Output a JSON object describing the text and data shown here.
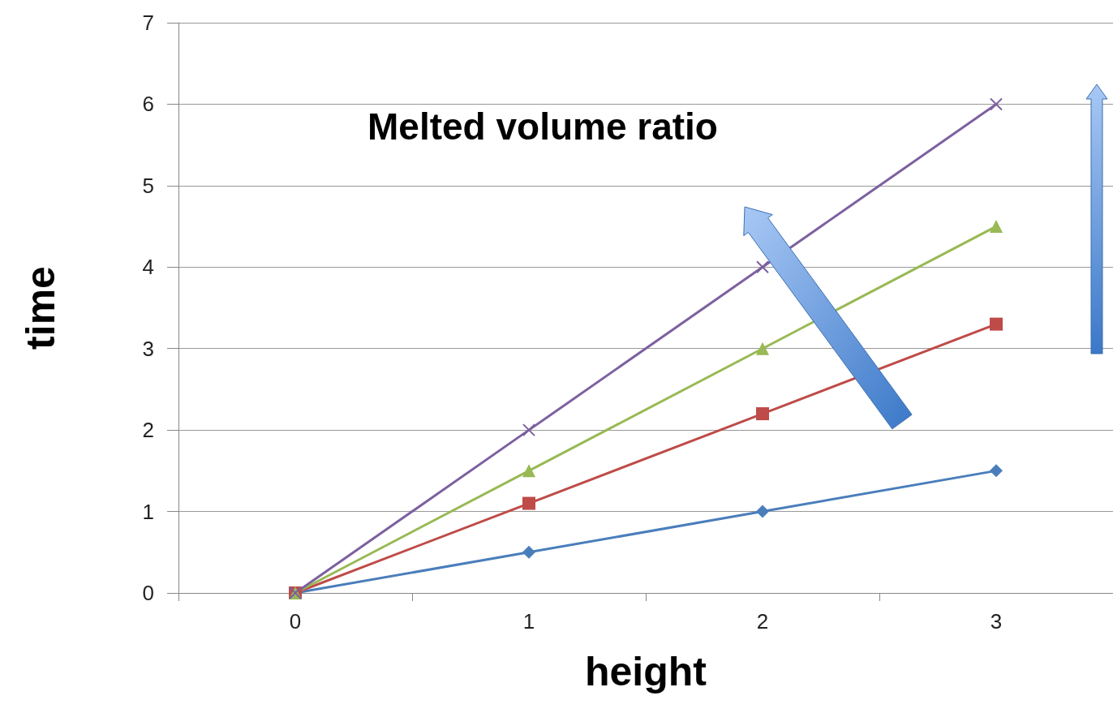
{
  "chart_data": {
    "type": "line",
    "xlabel": "height",
    "ylabel": "time",
    "annotations": [
      "Melted volume ratio"
    ],
    "categories": [
      "0",
      "1",
      "2",
      "3"
    ],
    "ylim": [
      0,
      7
    ],
    "yticks": [
      0,
      1,
      2,
      3,
      4,
      5,
      6,
      7
    ],
    "grid": "y",
    "line_style": "solid",
    "series": [
      {
        "color": "#4a7ebb",
        "marker": "diamond",
        "values": [
          0,
          0.5,
          1,
          1.5
        ]
      },
      {
        "color": "#be4b48",
        "marker": "square",
        "values": [
          0,
          1.1,
          2.2,
          3.3
        ]
      },
      {
        "color": "#98b954",
        "marker": "triangle",
        "values": [
          0,
          1.5,
          3,
          4.5
        ]
      },
      {
        "color": "#7d60a0",
        "marker": "cross",
        "values": [
          0,
          2,
          4,
          6
        ]
      }
    ]
  }
}
